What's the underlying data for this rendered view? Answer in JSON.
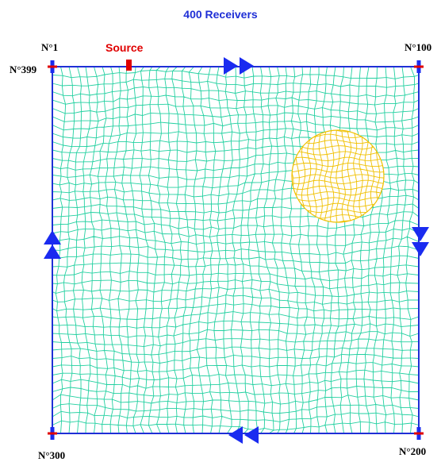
{
  "title": "400 Receivers",
  "source_label": "Source",
  "receivers": {
    "n1": "N°1",
    "n100": "N°100",
    "n200": "N°200",
    "n300": "N°300",
    "n399": "N°399"
  },
  "colors": {
    "title": "#1f2fd6",
    "source": "#e00000",
    "boundary": "#1f2fd6",
    "mesh": "#22d0a0",
    "inclusion": "#f0c000",
    "arrow": "#1a2bf0",
    "receiver_v": "#1a2bf0",
    "receiver_h": "#e00000"
  },
  "arrows": {
    "top": "right",
    "right": "down",
    "bottom": "left",
    "left": "up"
  },
  "icons": [
    "receiver-marker-icon",
    "source-marker-icon",
    "double-arrow-icon"
  ]
}
